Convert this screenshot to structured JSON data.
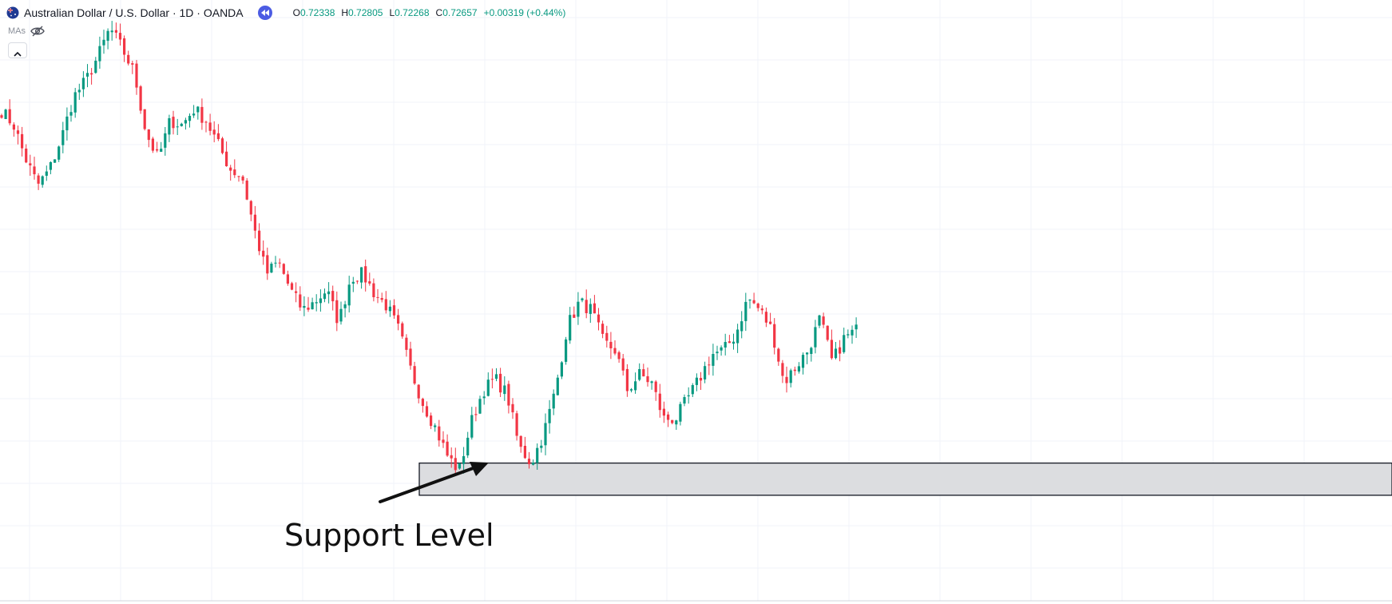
{
  "legend": {
    "symbol_title": "Australian Dollar / U.S. Dollar · 1D · OANDA",
    "flag_icon": "australia-flag-icon",
    "replay_icon": "rewind-icon",
    "open_label": "O",
    "open_value": "0.72338",
    "high_label": "H",
    "high_value": "0.72805",
    "low_label": "L",
    "low_value": "0.72268",
    "close_label": "C",
    "close_value": "0.72657",
    "change": "+0.00319 (+0.44%)",
    "up_color": "#089981",
    "down_color": "#f23645"
  },
  "indicators": {
    "mas_label": "MAs",
    "visibility_icon": "eye-off-icon",
    "collapse_icon": "chevron-up-icon"
  },
  "annotation": {
    "label": "Support Level",
    "arrow_icon": "arrow-icon"
  },
  "chart_data": {
    "type": "candlestick",
    "title": "Australian Dollar / U.S. Dollar · 1D · OANDA",
    "xlabel": "",
    "ylabel": "",
    "grid": true,
    "price_range": [
      0.64,
      0.79
    ],
    "support_zone": [
      0.667,
      0.675
    ],
    "close_path": [
      0.7625,
      0.759,
      0.7505,
      0.744,
      0.748,
      0.756,
      0.766,
      0.77,
      0.776,
      0.783,
      0.778,
      0.772,
      0.757,
      0.7505,
      0.76,
      0.759,
      0.763,
      0.76,
      0.754,
      0.748,
      0.746,
      0.733,
      0.722,
      0.725,
      0.718,
      0.713,
      0.715,
      0.718,
      0.71,
      0.721,
      0.722,
      0.717,
      0.714,
      0.708,
      0.698,
      0.69,
      0.684,
      0.677,
      0.673,
      0.685,
      0.693,
      0.696,
      0.692,
      0.679,
      0.675,
      0.682,
      0.693,
      0.709,
      0.715,
      0.713,
      0.705,
      0.703,
      0.693,
      0.697,
      0.695,
      0.686,
      0.686,
      0.691,
      0.696,
      0.702,
      0.703,
      0.707,
      0.716,
      0.713,
      0.708,
      0.695,
      0.699,
      0.703,
      0.711,
      0.7,
      0.706,
      0.708
    ]
  }
}
